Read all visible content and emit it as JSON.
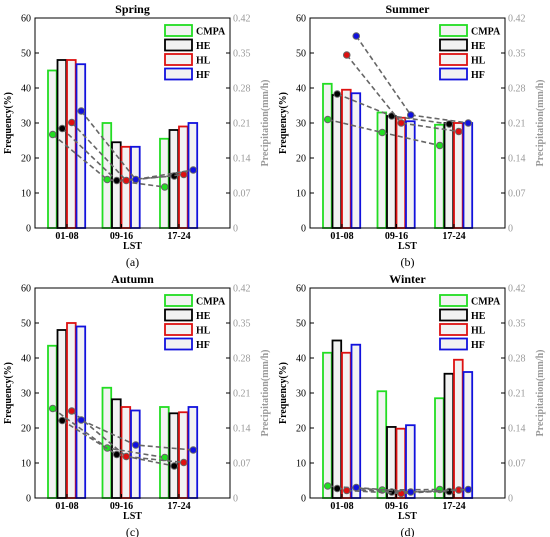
{
  "figure": {
    "colors": {
      "CMPA": "#22dd22",
      "HE": "#000000",
      "HL": "#dd1111",
      "HF": "#1111dd",
      "bar_fill": "#f2f2f2",
      "rain_line": "#666666",
      "right_axis": "#999999"
    }
  },
  "chart_data": [
    {
      "type": "bar",
      "title": "Spring",
      "caption": "(a)",
      "xlabel": "LST",
      "ylabel": "Frequency(%)",
      "y2label": "Precipitation(mm/h)",
      "categories": [
        "01-08",
        "09-16",
        "17-24"
      ],
      "ylim": [
        0,
        60
      ],
      "yticks": [
        0,
        10,
        20,
        30,
        40,
        50,
        60
      ],
      "y2lim": [
        0,
        0.42
      ],
      "y2ticks": [
        "0",
        "0.07",
        "0.14",
        "0.21",
        "0.28",
        "0.35",
        "0.42"
      ],
      "legend": [
        "CMPA",
        "HE",
        "HL",
        "HF"
      ],
      "series": [
        {
          "name": "CMPA",
          "values": [
            45,
            30,
            25.5
          ]
        },
        {
          "name": "HE",
          "values": [
            48,
            24.5,
            28
          ]
        },
        {
          "name": "HL",
          "values": [
            48,
            23.2,
            29
          ]
        },
        {
          "name": "HF",
          "values": [
            46.8,
            23.2,
            30
          ]
        }
      ],
      "precipitation": [
        {
          "name": "CMPA",
          "values": [
            0.187,
            0.097,
            0.082
          ]
        },
        {
          "name": "HE",
          "values": [
            0.199,
            0.095,
            0.104
          ]
        },
        {
          "name": "HL",
          "values": [
            0.211,
            0.095,
            0.107
          ]
        },
        {
          "name": "HF",
          "values": [
            0.234,
            0.097,
            0.116
          ]
        }
      ]
    },
    {
      "type": "bar",
      "title": "Summer",
      "caption": "(b)",
      "xlabel": "LST",
      "ylabel": "Frequency(%)",
      "y2label": "Precipitation(mm/h)",
      "categories": [
        "01-08",
        "09-16",
        "17-24"
      ],
      "ylim": [
        0,
        60
      ],
      "yticks": [
        0,
        10,
        20,
        30,
        40,
        50,
        60
      ],
      "y2lim": [
        0,
        0.42
      ],
      "y2ticks": [
        "0",
        "0.07",
        "0.14",
        "0.21",
        "0.28",
        "0.35",
        "0.42"
      ],
      "legend": [
        "CMPA",
        "HE",
        "HL",
        "HF"
      ],
      "series": [
        {
          "name": "CMPA",
          "values": [
            41.2,
            33,
            29.5
          ]
        },
        {
          "name": "HE",
          "values": [
            38,
            32,
            30
          ]
        },
        {
          "name": "HL",
          "values": [
            39.5,
            31.5,
            30
          ]
        },
        {
          "name": "HF",
          "values": [
            38.5,
            30.5,
            30
          ]
        }
      ],
      "precipitation": [
        {
          "name": "CMPA",
          "values": [
            0.217,
            0.191,
            0.165
          ]
        },
        {
          "name": "HE",
          "values": [
            0.268,
            0.224,
            0.208
          ]
        },
        {
          "name": "HL",
          "values": [
            0.346,
            0.21,
            0.193
          ]
        },
        {
          "name": "HF",
          "values": [
            0.384,
            0.226,
            0.21
          ]
        }
      ]
    },
    {
      "type": "bar",
      "title": "Autumn",
      "caption": "(c)",
      "xlabel": "LST",
      "ylabel": "Frequency(%)",
      "y2label": "Precipitation(mm/h)",
      "categories": [
        "01-08",
        "09-16",
        "17-24"
      ],
      "ylim": [
        0,
        60
      ],
      "yticks": [
        0,
        10,
        20,
        30,
        40,
        50,
        60
      ],
      "y2lim": [
        0,
        0.42
      ],
      "y2ticks": [
        "0",
        "0.07",
        "0.14",
        "0.21",
        "0.28",
        "0.35",
        "0.42"
      ],
      "legend": [
        "CMPA",
        "HE",
        "HL",
        "HF"
      ],
      "series": [
        {
          "name": "CMPA",
          "values": [
            43.5,
            31.5,
            26
          ]
        },
        {
          "name": "HE",
          "values": [
            48,
            28.2,
            24.2
          ]
        },
        {
          "name": "HL",
          "values": [
            50,
            26,
            24.5
          ]
        },
        {
          "name": "HF",
          "values": [
            49,
            25,
            26
          ]
        }
      ],
      "precipitation": [
        {
          "name": "CMPA",
          "values": [
            0.179,
            0.1,
            0.081
          ]
        },
        {
          "name": "HE",
          "values": [
            0.155,
            0.087,
            0.064
          ]
        },
        {
          "name": "HL",
          "values": [
            0.174,
            0.083,
            0.071
          ]
        },
        {
          "name": "HF",
          "values": [
            0.156,
            0.106,
            0.096
          ]
        }
      ]
    },
    {
      "type": "bar",
      "title": "Winter",
      "caption": "(d)",
      "xlabel": "LST",
      "ylabel": "Frequency(%)",
      "y2label": "Precipitation(mm/h)",
      "categories": [
        "01-08",
        "09-16",
        "17-24"
      ],
      "ylim": [
        0,
        60
      ],
      "yticks": [
        0,
        10,
        20,
        30,
        40,
        50,
        60
      ],
      "y2lim": [
        0,
        0.42
      ],
      "y2ticks": [
        "0",
        "0.07",
        "0.14",
        "0.21",
        "0.28",
        "0.35",
        "0.42"
      ],
      "legend": [
        "CMPA",
        "HE",
        "HL",
        "HF"
      ],
      "series": [
        {
          "name": "CMPA",
          "values": [
            41.5,
            30.5,
            28.5
          ]
        },
        {
          "name": "HE",
          "values": [
            45,
            20.3,
            35.5
          ]
        },
        {
          "name": "HL",
          "values": [
            41.5,
            19.8,
            39.5
          ]
        },
        {
          "name": "HF",
          "values": [
            43.8,
            20.8,
            36
          ]
        }
      ],
      "precipitation": [
        {
          "name": "CMPA",
          "values": [
            0.024,
            0.016,
            0.017
          ]
        },
        {
          "name": "HE",
          "values": [
            0.019,
            0.012,
            0.013
          ]
        },
        {
          "name": "HL",
          "values": [
            0.015,
            0.009,
            0.016
          ]
        },
        {
          "name": "HF",
          "values": [
            0.021,
            0.012,
            0.017
          ]
        }
      ]
    }
  ]
}
